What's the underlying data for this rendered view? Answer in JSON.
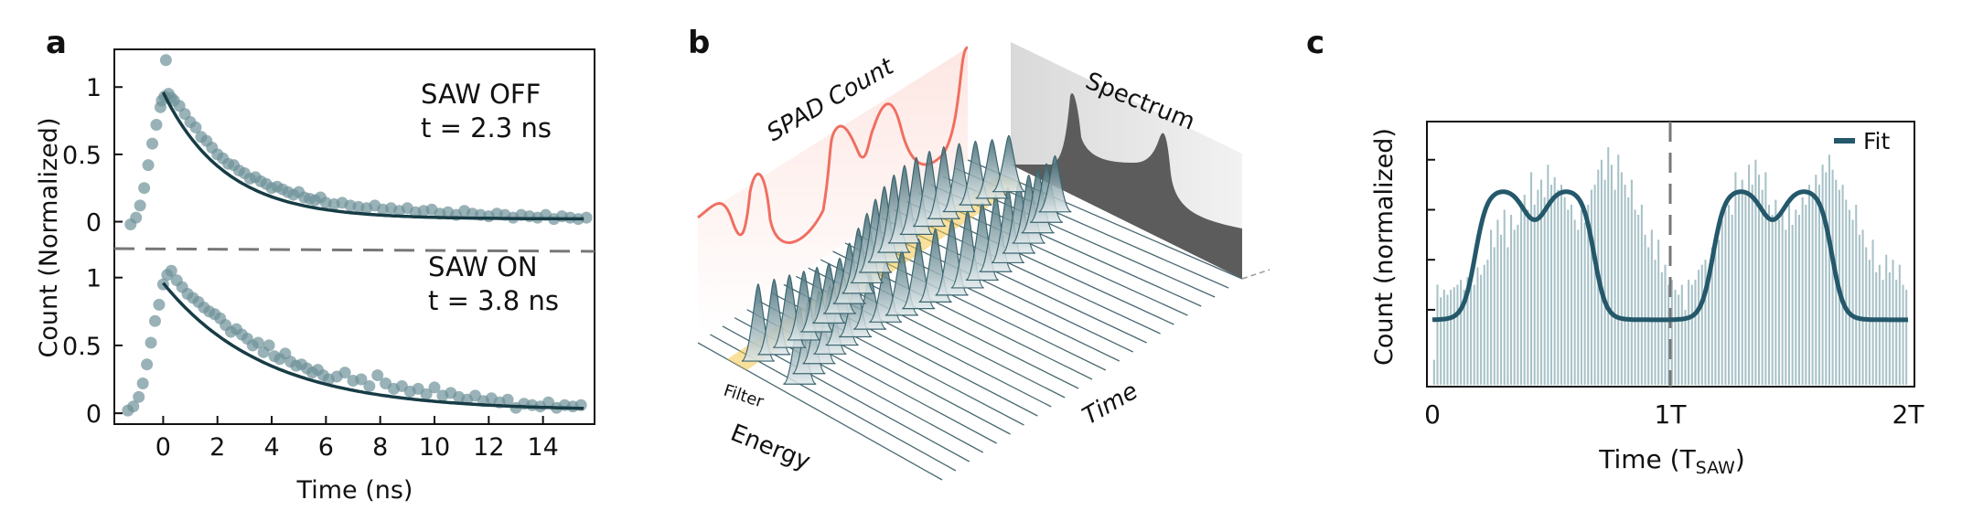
{
  "panels": {
    "a": {
      "label": "a"
    },
    "b": {
      "label": "b"
    },
    "c": {
      "label": "c"
    }
  },
  "chart_data": [
    {
      "type": "scatter",
      "panel": "a",
      "ylabel": "Count (Normalized)",
      "xlabel": "Time (ns)",
      "x_ticks": [
        "0",
        "2",
        "4",
        "6",
        "8",
        "10",
        "12",
        "14"
      ],
      "xlim": [
        -1.8,
        15.9
      ],
      "subplots": [
        {
          "annotation": "SAW OFF",
          "fit_label": "t = 2.3 ns",
          "y_ticks": [
            "0",
            "0.5",
            "1"
          ],
          "ylim": [
            -0.2,
            1.28
          ],
          "tau": 2.3,
          "series": [
            {
              "kind": "data",
              "x": [
                -1.2,
                -1.0,
                -0.85,
                -0.7,
                -0.55,
                -0.4,
                -0.25,
                -0.1,
                -0.05,
                0.05,
                0.1,
                0.2,
                0.3,
                0.4,
                0.6,
                0.8,
                1.0,
                1.2,
                1.4,
                1.6,
                1.8,
                2.0,
                2.2,
                2.4,
                2.6,
                2.8,
                3.0,
                3.2,
                3.4,
                3.6,
                3.8,
                4.0,
                4.2,
                4.4,
                4.6,
                4.8,
                5.0,
                5.2,
                5.4,
                5.6,
                5.8,
                6.0,
                6.3,
                6.6,
                6.9,
                7.2,
                7.5,
                7.8,
                8.1,
                8.4,
                8.7,
                9.0,
                9.3,
                9.6,
                9.9,
                10.2,
                10.5,
                10.8,
                11.1,
                11.4,
                11.7,
                12.0,
                12.3,
                12.6,
                12.9,
                13.2,
                13.5,
                13.8,
                14.1,
                14.4,
                14.7,
                15.0,
                15.3,
                15.6
              ],
              "y": [
                -0.02,
                0.03,
                0.12,
                0.25,
                0.42,
                0.58,
                0.72,
                0.85,
                0.9,
                0.93,
                1.2,
                0.95,
                0.92,
                0.9,
                0.86,
                0.8,
                0.74,
                0.7,
                0.63,
                0.6,
                0.55,
                0.5,
                0.47,
                0.43,
                0.42,
                0.38,
                0.36,
                0.32,
                0.33,
                0.3,
                0.28,
                0.25,
                0.26,
                0.24,
                0.22,
                0.2,
                0.22,
                0.18,
                0.17,
                0.16,
                0.18,
                0.14,
                0.13,
                0.14,
                0.12,
                0.11,
                0.1,
                0.12,
                0.09,
                0.1,
                0.08,
                0.1,
                0.07,
                0.08,
                0.09,
                0.06,
                0.07,
                0.05,
                0.08,
                0.06,
                0.05,
                0.04,
                0.06,
                0.05,
                0.03,
                0.05,
                0.04,
                0.03,
                0.05,
                0.02,
                0.04,
                0.03,
                0.02,
                0.03
              ]
            }
          ]
        },
        {
          "annotation": "SAW ON",
          "fit_label": "t = 3.8 ns",
          "y_ticks": [
            "0",
            "0.5",
            "1"
          ],
          "ylim": [
            -0.08,
            1.2
          ],
          "tau": 3.8,
          "series": [
            {
              "kind": "data",
              "x": [
                -1.3,
                -1.1,
                -0.9,
                -0.75,
                -0.6,
                -0.45,
                -0.3,
                -0.15,
                0.0,
                0.15,
                0.3,
                0.5,
                0.7,
                0.9,
                1.1,
                1.3,
                1.5,
                1.7,
                1.9,
                2.1,
                2.3,
                2.5,
                2.7,
                2.9,
                3.1,
                3.3,
                3.5,
                3.7,
                3.9,
                4.1,
                4.3,
                4.5,
                4.7,
                4.9,
                5.1,
                5.3,
                5.5,
                5.7,
                5.9,
                6.1,
                6.4,
                6.7,
                7.0,
                7.3,
                7.6,
                7.9,
                8.2,
                8.5,
                8.8,
                9.1,
                9.4,
                9.7,
                10.0,
                10.3,
                10.6,
                10.9,
                11.2,
                11.5,
                11.8,
                12.1,
                12.4,
                12.7,
                13.0,
                13.3,
                13.6,
                13.9,
                14.2,
                14.5,
                14.8,
                15.1,
                15.4
              ],
              "y": [
                0.02,
                0.05,
                0.12,
                0.22,
                0.36,
                0.52,
                0.68,
                0.8,
                0.95,
                1.02,
                1.05,
                0.98,
                0.93,
                0.88,
                0.85,
                0.82,
                0.78,
                0.75,
                0.73,
                0.7,
                0.65,
                0.6,
                0.62,
                0.58,
                0.55,
                0.5,
                0.52,
                0.45,
                0.5,
                0.42,
                0.4,
                0.44,
                0.38,
                0.35,
                0.36,
                0.33,
                0.3,
                0.32,
                0.28,
                0.25,
                0.27,
                0.3,
                0.24,
                0.25,
                0.2,
                0.28,
                0.22,
                0.18,
                0.2,
                0.16,
                0.18,
                0.14,
                0.19,
                0.13,
                0.15,
                0.12,
                0.1,
                0.13,
                0.09,
                0.11,
                0.08,
                0.1,
                0.04,
                0.07,
                0.06,
                0.05,
                0.08,
                0.04,
                0.06,
                0.05,
                0.06
              ]
            }
          ]
        }
      ]
    },
    {
      "type": "diagram",
      "panel": "b",
      "labels": {
        "spad": "SPAD Count",
        "spectrum": "Spectrum",
        "filter": "Filter",
        "energy": "Energy",
        "time": "Time"
      },
      "colors": {
        "spad": "#ef6f61",
        "peak": "#3c6670",
        "filter": "#f6c64a",
        "spectrum": "#555555"
      }
    },
    {
      "type": "bar",
      "panel": "c",
      "ylabel": "Count (normalized)",
      "xlabel_main": "Time (T",
      "xlabel_sub": "SAW",
      "xlabel_end": ")",
      "x_ticks": [
        "0",
        "1T",
        "2T"
      ],
      "legend": {
        "label": "Fit",
        "position": "top-right"
      },
      "values": [
        0.1,
        0.4,
        0.35,
        0.38,
        0.36,
        0.38,
        0.39,
        0.4,
        0.42,
        0.38,
        0.43,
        0.45,
        0.4,
        0.47,
        0.44,
        0.48,
        0.5,
        0.62,
        0.55,
        0.66,
        0.6,
        0.7,
        0.55,
        0.68,
        0.62,
        0.64,
        0.72,
        0.76,
        0.7,
        0.85,
        0.72,
        0.78,
        0.82,
        0.75,
        0.88,
        0.8,
        0.83,
        0.78,
        0.8,
        0.75,
        0.7,
        0.72,
        0.66,
        0.62,
        0.7,
        0.65,
        0.72,
        0.78,
        0.8,
        0.86,
        0.9,
        0.82,
        0.95,
        0.88,
        0.78,
        0.92,
        0.85,
        0.8,
        0.75,
        0.82,
        0.7,
        0.68,
        0.72,
        0.6,
        0.55,
        0.62,
        0.5,
        0.58,
        0.45,
        0.48,
        0.4,
        0.42,
        0.38,
        0.36,
        0.4,
        0.3,
        0.42,
        0.4,
        0.42,
        0.46,
        0.48,
        0.5,
        0.45,
        0.55,
        0.6,
        0.58,
        0.66,
        0.7,
        0.72,
        0.68,
        0.85,
        0.78,
        0.82,
        0.76,
        0.88,
        0.8,
        0.9,
        0.84,
        0.78,
        0.85,
        0.72,
        0.68,
        0.74,
        0.66,
        0.7,
        0.62,
        0.72,
        0.64,
        0.7,
        0.68,
        0.75,
        0.72,
        0.8,
        0.76,
        0.84,
        0.8,
        0.88,
        0.85,
        0.92,
        0.86,
        0.82,
        0.78,
        0.8,
        0.74,
        0.7,
        0.66,
        0.72,
        0.6,
        0.62,
        0.55,
        0.5,
        0.58,
        0.45,
        0.48,
        0.42,
        0.52,
        0.45,
        0.5,
        0.42,
        0.48,
        0.4,
        0.38
      ],
      "colors": {
        "bar": "#a8c2c8",
        "fit": "#24586a"
      }
    }
  ]
}
